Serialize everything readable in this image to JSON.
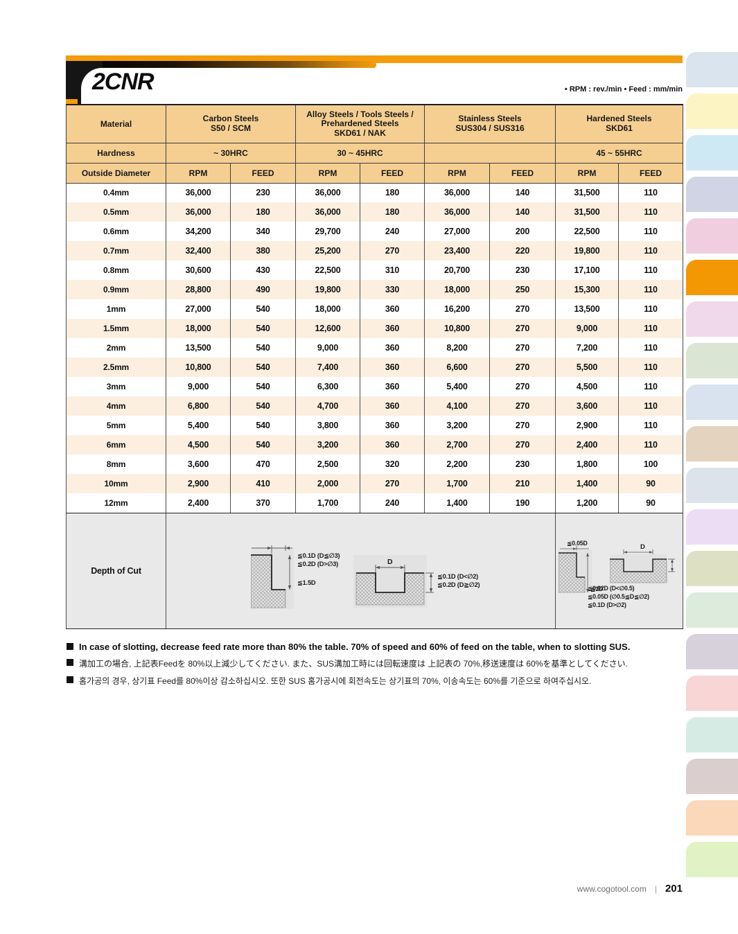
{
  "page": {
    "title": "2CNR",
    "units_note": "• RPM : rev./min   • Feed : mm/min",
    "footer": {
      "website": "www.cogotool.com",
      "separator": "|",
      "page_number": "201"
    },
    "accent_orange": "#f49c0c"
  },
  "table": {
    "material_label": "Material",
    "hardness_label": "Hardness",
    "diameter_label": "Outside Diameter",
    "rpm_label": "RPM",
    "feed_label": "FEED",
    "depth_label": "Depth of Cut",
    "groups": [
      {
        "lines": [
          "Carbon Steels",
          "S50 / SCM"
        ],
        "hardness": "~ 30HRC"
      },
      {
        "lines": [
          "Alloy Steels / Tools Steels /",
          "Prehardened Steels",
          "SKD61 / NAK"
        ],
        "hardness": "30 ~ 45HRC"
      },
      {
        "lines": [
          "Stainless Steels",
          "SUS304 / SUS316"
        ],
        "hardness": ""
      },
      {
        "lines": [
          "Hardened Steels",
          "SKD61"
        ],
        "hardness": "45 ~ 55HRC"
      }
    ],
    "rows": [
      {
        "d": "0.4mm",
        "values": [
          "36,000",
          "230",
          "36,000",
          "180",
          "36,000",
          "140",
          "31,500",
          "110"
        ]
      },
      {
        "d": "0.5mm",
        "values": [
          "36,000",
          "180",
          "36,000",
          "180",
          "36,000",
          "140",
          "31,500",
          "110"
        ]
      },
      {
        "d": "0.6mm",
        "values": [
          "34,200",
          "340",
          "29,700",
          "240",
          "27,000",
          "200",
          "22,500",
          "110"
        ]
      },
      {
        "d": "0.7mm",
        "values": [
          "32,400",
          "380",
          "25,200",
          "270",
          "23,400",
          "220",
          "19,800",
          "110"
        ]
      },
      {
        "d": "0.8mm",
        "values": [
          "30,600",
          "430",
          "22,500",
          "310",
          "20,700",
          "230",
          "17,100",
          "110"
        ]
      },
      {
        "d": "0.9mm",
        "values": [
          "28,800",
          "490",
          "19,800",
          "330",
          "18,000",
          "250",
          "15,300",
          "110"
        ]
      },
      {
        "d": "1mm",
        "values": [
          "27,000",
          "540",
          "18,000",
          "360",
          "16,200",
          "270",
          "13,500",
          "110"
        ]
      },
      {
        "d": "1.5mm",
        "values": [
          "18,000",
          "540",
          "12,600",
          "360",
          "10,800",
          "270",
          "9,000",
          "110"
        ]
      },
      {
        "d": "2mm",
        "values": [
          "13,500",
          "540",
          "9,000",
          "360",
          "8,200",
          "270",
          "7,200",
          "110"
        ]
      },
      {
        "d": "2.5mm",
        "values": [
          "10,800",
          "540",
          "7,400",
          "360",
          "6,600",
          "270",
          "5,500",
          "110"
        ]
      },
      {
        "d": "3mm",
        "values": [
          "9,000",
          "540",
          "6,300",
          "360",
          "5,400",
          "270",
          "4,500",
          "110"
        ]
      },
      {
        "d": "4mm",
        "values": [
          "6,800",
          "540",
          "4,700",
          "360",
          "4,100",
          "270",
          "3,600",
          "110"
        ]
      },
      {
        "d": "5mm",
        "values": [
          "5,400",
          "540",
          "3,800",
          "360",
          "3,200",
          "270",
          "2,900",
          "110"
        ]
      },
      {
        "d": "6mm",
        "values": [
          "4,500",
          "540",
          "3,200",
          "360",
          "2,700",
          "270",
          "2,400",
          "110"
        ]
      },
      {
        "d": "8mm",
        "values": [
          "3,600",
          "470",
          "2,500",
          "320",
          "2,200",
          "230",
          "1,800",
          "100"
        ]
      },
      {
        "d": "10mm",
        "values": [
          "2,900",
          "410",
          "2,000",
          "270",
          "1,700",
          "210",
          "1,400",
          "90"
        ]
      },
      {
        "d": "12mm",
        "values": [
          "2,400",
          "370",
          "1,700",
          "240",
          "1,400",
          "190",
          "1,200",
          "90"
        ]
      }
    ]
  },
  "diagrams": {
    "left_step": {
      "annotations": [
        "≦0.1D (D≦∅3)",
        "≦0.2D (D>∅3)",
        "≦1.5D"
      ]
    },
    "mid_slot": {
      "d_label": "D",
      "annotations": [
        "≦0.1D (D<∅2)",
        "≦0.2D (D≧∅2)"
      ]
    },
    "right_step": {
      "top_label": "≦0.05D",
      "side_label": "≦1D"
    },
    "right_slot": {
      "d_label": "D",
      "annotations": [
        "≦0.02D (D<∅0.5)",
        "≦0.05D (∅0.5≦D≦∅2)",
        "≦0.1D (D>∅2)"
      ]
    }
  },
  "notes": [
    {
      "lang": "en",
      "text": "In case of slotting, decrease feed rate more than 80% the table. 70% of  speed and 60% of feed on the  table, when to slotting SUS."
    },
    {
      "lang": "ja",
      "text": "溝加工の場合, 上記表Feedを 80%以上減少してください. また、SUS溝加工時には回転速度は 上記表の 70%,移送速度は 60%を基準としてください."
    },
    {
      "lang": "ko",
      "text": "홈가공의 경우, 상기표 Feed를 80%이상 감소하십시오. 또한 SUS 홈가공시에 회전속도는 상기표의 70%, 이송속도는 60%를 기준으로 하여주십시오."
    }
  ],
  "side_tabs": [
    {
      "color": "#d9e4ee",
      "active": false
    },
    {
      "color": "#fcf4c3",
      "active": false
    },
    {
      "color": "#cfe9f4",
      "active": false
    },
    {
      "color": "#d0d4e4",
      "active": false
    },
    {
      "color": "#f1cde0",
      "active": false
    },
    {
      "color": "#f39803",
      "active": true
    },
    {
      "color": "#f0d9ea",
      "active": false
    },
    {
      "color": "#dbe5d3",
      "active": false
    },
    {
      "color": "#d8e3ef",
      "active": false
    },
    {
      "color": "#e3d3bf",
      "active": false
    },
    {
      "color": "#dce3eb",
      "active": false
    },
    {
      "color": "#ecddf4",
      "active": false
    },
    {
      "color": "#dde0c3",
      "active": false
    },
    {
      "color": "#dcebdc",
      "active": false
    },
    {
      "color": "#d6d1db",
      "active": false
    },
    {
      "color": "#f8d6d6",
      "active": false
    },
    {
      "color": "#d6ebe4",
      "active": false
    },
    {
      "color": "#dbcecf",
      "active": false
    },
    {
      "color": "#fbd8ba",
      "active": false
    },
    {
      "color": "#e1f2c5",
      "active": false
    }
  ]
}
